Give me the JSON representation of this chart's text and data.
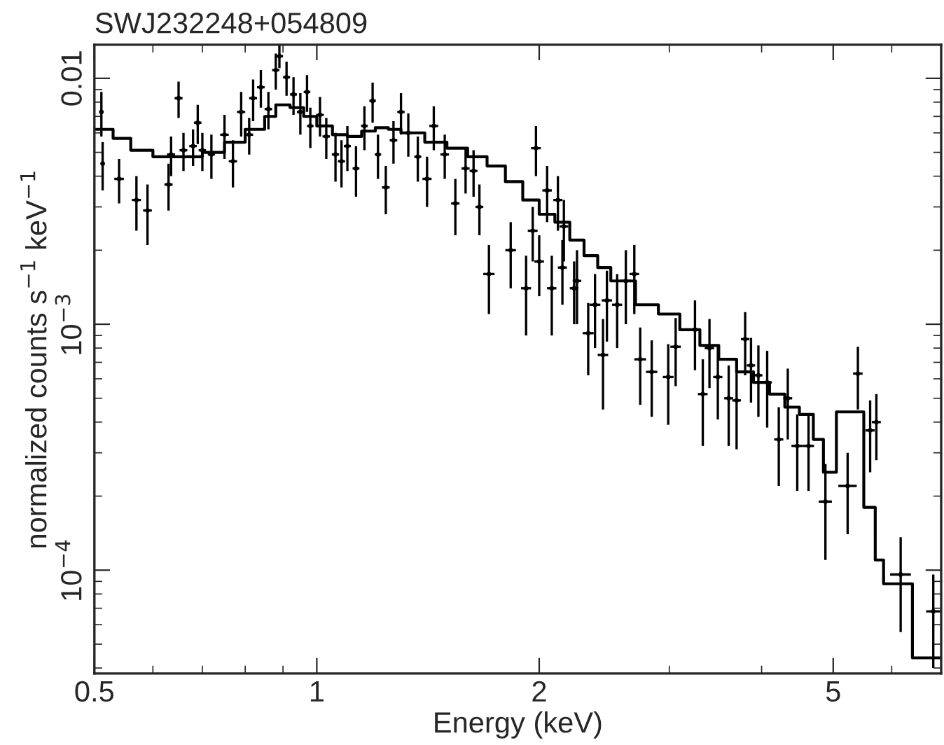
{
  "chart_data": {
    "type": "scatter",
    "title": "SWJ232248+054809",
    "xlabel": "Energy (keV)",
    "ylabel": "normalized counts s$^{−1}$ keV$^{−1}$",
    "log": "xy",
    "xlim": [
      0.5,
      7
    ],
    "ylim": [
      3.8e-05,
      0.0137
    ],
    "xticks": [
      0.5,
      1,
      2,
      5
    ],
    "yticks": [
      {
        "value": 0.01,
        "label": "0.01"
      },
      {
        "value": 0.001,
        "label": "10$^{−3}$"
      },
      {
        "value": 0.0001,
        "label": "10$^{−4}$"
      }
    ],
    "grid": false,
    "legend": false,
    "series": [
      {
        "color": "#000000",
        "x": [
          0.511,
          0.513,
          0.54,
          0.57,
          0.59,
          0.63,
          0.635,
          0.65,
          0.66,
          0.68,
          0.69,
          0.7,
          0.72,
          0.75,
          0.77,
          0.79,
          0.81,
          0.82,
          0.84,
          0.86,
          0.88,
          0.89,
          0.91,
          0.93,
          0.95,
          0.97,
          0.98,
          1.01,
          1.03,
          1.06,
          1.08,
          1.1,
          1.13,
          1.16,
          1.19,
          1.21,
          1.24,
          1.27,
          1.3,
          1.33,
          1.37,
          1.41,
          1.44,
          1.49,
          1.54,
          1.59,
          1.63,
          1.66,
          1.71,
          1.83,
          1.92,
          1.96,
          1.98,
          2.0,
          2.05,
          2.08,
          2.12,
          2.15,
          2.16,
          2.23,
          2.25,
          2.33,
          2.38,
          2.44,
          2.47,
          2.55,
          2.62,
          2.69,
          2.74,
          2.84,
          2.99,
          3.06,
          3.25,
          3.33,
          3.4,
          3.49,
          3.61,
          3.7,
          3.8,
          3.87,
          3.96,
          4.07,
          4.22,
          4.34,
          4.47,
          4.63,
          4.88,
          5.23,
          5.4,
          5.61,
          5.72,
          6.17,
          6.83
        ],
        "values": [
          0.0073,
          0.0045,
          0.0039,
          0.0032,
          0.0029,
          0.0037,
          0.0049,
          0.0083,
          0.0051,
          0.0053,
          0.0066,
          0.0051,
          0.0049,
          0.0059,
          0.0046,
          0.0073,
          0.0059,
          0.0083,
          0.0092,
          0.0075,
          0.0108,
          0.0123,
          0.0101,
          0.0086,
          0.0073,
          0.0088,
          0.0064,
          0.0071,
          0.0058,
          0.0049,
          0.0046,
          0.0053,
          0.0043,
          0.0064,
          0.0081,
          0.0049,
          0.0036,
          0.0056,
          0.0073,
          0.006,
          0.0048,
          0.0039,
          0.0064,
          0.0049,
          0.0031,
          0.0043,
          0.0042,
          0.003,
          0.0016,
          0.002,
          0.0014,
          0.0024,
          0.0052,
          0.0018,
          0.0035,
          0.0014,
          0.0032,
          0.0017,
          0.0025,
          0.0014,
          0.0015,
          0.00092,
          0.0012,
          0.00075,
          0.00125,
          0.0012,
          0.0015,
          0.0016,
          0.00072,
          0.00064,
          0.00061,
          0.00081,
          0.00095,
          0.00052,
          0.0008,
          0.00061,
          0.0005,
          0.00049,
          0.00087,
          0.00068,
          0.00062,
          0.00058,
          0.00034,
          0.0005,
          0.00032,
          0.00032,
          0.00019,
          0.00022,
          0.00063,
          0.00037,
          0.0004,
          9.6e-05,
          6.8e-05
        ],
        "errors": [
          0.0015,
          0.001,
          0.0008,
          0.0008,
          0.0008,
          0.0008,
          0.0009,
          0.0014,
          0.0009,
          0.0009,
          0.0012,
          0.0009,
          0.001,
          0.0012,
          0.001,
          0.0015,
          0.001,
          0.0016,
          0.0016,
          0.0013,
          0.0018,
          0.0013,
          0.0016,
          0.0015,
          0.0014,
          0.0015,
          0.0012,
          0.0013,
          0.0011,
          0.0011,
          0.001,
          0.0011,
          0.001,
          0.0013,
          0.0015,
          0.001,
          0.0008,
          0.0011,
          0.0014,
          0.0012,
          0.001,
          0.0009,
          0.0013,
          0.001,
          0.0008,
          0.0009,
          0.0009,
          0.0007,
          0.0005,
          0.0006,
          0.0005,
          0.0006,
          0.0012,
          0.0005,
          0.0009,
          0.0005,
          0.0008,
          0.0005,
          0.0007,
          0.0004,
          0.0005,
          0.0003,
          0.0004,
          0.0003,
          0.0004,
          0.0004,
          0.0005,
          0.0005,
          0.00025,
          0.00022,
          0.00022,
          0.00025,
          0.0003,
          0.0002,
          0.00025,
          0.0002,
          0.00018,
          0.00018,
          0.00025,
          0.0002,
          0.0002,
          0.0002,
          0.00012,
          0.00016,
          0.00011,
          0.00011,
          8e-05,
          8e-05,
          0.00018,
          0.00012,
          0.00012,
          4e-05,
          2.8e-05
        ],
        "xerrors": [
          null,
          null,
          0.008,
          0.008,
          0.008,
          0.008,
          0.008,
          0.008,
          0.008,
          0.008,
          0.008,
          0.008,
          0.008,
          0.01,
          0.01,
          0.01,
          0.01,
          0.01,
          0.01,
          0.01,
          0.01,
          0.01,
          0.01,
          0.01,
          0.01,
          0.01,
          0.01,
          0.012,
          0.012,
          0.012,
          0.012,
          0.012,
          0.012,
          0.012,
          0.012,
          0.012,
          0.015,
          0.015,
          0.015,
          0.015,
          0.015,
          0.02,
          0.02,
          0.02,
          0.02,
          0.02,
          0.02,
          0.02,
          0.03,
          0.03,
          0.03,
          0.03,
          0.03,
          0.03,
          0.03,
          0.03,
          0.03,
          0.03,
          0.03,
          0.03,
          0.03,
          0.04,
          0.04,
          0.04,
          0.04,
          0.04,
          0.04,
          0.04,
          0.05,
          0.05,
          0.05,
          0.05,
          0.05,
          0.05,
          0.05,
          0.05,
          0.05,
          0.05,
          0.05,
          0.05,
          0.05,
          0.06,
          0.06,
          0.06,
          0.08,
          0.08,
          0.1,
          0.15,
          0.08,
          0.08,
          0.08,
          0.2,
          0.15
        ]
      },
      {
        "type": "step",
        "color": "#000000",
        "x": [
          0.5,
          0.53,
          0.56,
          0.6,
          0.65,
          0.7,
          0.75,
          0.8,
          0.85,
          0.88,
          0.92,
          0.96,
          1.0,
          1.05,
          1.1,
          1.15,
          1.2,
          1.25,
          1.3,
          1.4,
          1.5,
          1.6,
          1.7,
          1.8,
          1.9,
          2.0,
          2.1,
          2.2,
          2.3,
          2.4,
          2.5,
          2.7,
          2.9,
          3.1,
          3.3,
          3.5,
          3.7,
          3.9,
          4.1,
          4.3,
          4.5,
          4.7,
          4.85,
          5.05,
          5.5,
          5.7,
          5.85,
          6.4,
          7.0
        ],
        "values": [
          0.0062,
          0.0057,
          0.0051,
          0.0048,
          0.0048,
          0.005,
          0.0055,
          0.0062,
          0.007,
          0.0078,
          0.0076,
          0.007,
          0.0064,
          0.0059,
          0.0058,
          0.0061,
          0.0063,
          0.0062,
          0.006,
          0.0055,
          0.0052,
          0.0048,
          0.0044,
          0.0038,
          0.0032,
          0.0028,
          0.0026,
          0.0022,
          0.0019,
          0.0017,
          0.0015,
          0.0012,
          0.0011,
          0.00095,
          0.00082,
          0.00072,
          0.00064,
          0.00058,
          0.00052,
          0.00046,
          0.00043,
          0.00034,
          0.00025,
          0.00044,
          0.00018,
          0.00011,
          8.8e-05,
          4.4e-05,
          4.4e-05
        ]
      }
    ]
  }
}
